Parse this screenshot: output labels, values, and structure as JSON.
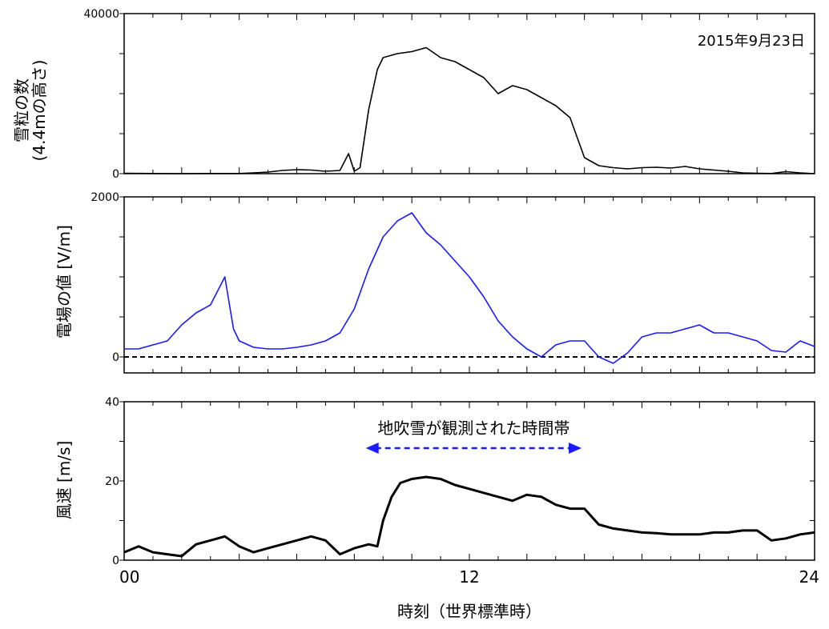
{
  "xlabel": "時刻（世界標準時）",
  "x_ticks": [
    "00",
    "12",
    "24"
  ],
  "chart_data": [
    {
      "type": "line",
      "panel": "top",
      "ylabel_line1": "雪粒の数",
      "ylabel_line2": "(4.4mの高さ)",
      "annotation": "2015年9月23日",
      "xlim": [
        0,
        24
      ],
      "ylim": [
        0,
        40000
      ],
      "y_ticks": [
        "40000",
        "0"
      ],
      "series": [
        {
          "color": "#000000",
          "x": [
            0,
            1,
            2,
            3,
            4,
            4.5,
            5,
            5.5,
            6,
            6.5,
            7,
            7.5,
            7.8,
            8,
            8.2,
            8.5,
            8.8,
            9,
            9.5,
            10,
            10.5,
            11,
            11.5,
            12,
            12.5,
            13,
            13.5,
            14,
            14.5,
            15,
            15.5,
            16,
            16.5,
            17,
            17.5,
            18,
            18.5,
            19,
            19.5,
            20,
            20.5,
            21,
            21.5,
            22,
            22.5,
            23,
            23.5,
            24
          ],
          "y": [
            100,
            50,
            0,
            50,
            50,
            200,
            400,
            800,
            1000,
            900,
            600,
            800,
            5000,
            600,
            1500,
            16000,
            26000,
            29000,
            30000,
            30500,
            31500,
            29000,
            28000,
            26000,
            24000,
            20000,
            22000,
            21000,
            19000,
            17000,
            14000,
            4000,
            2000,
            1500,
            1200,
            1500,
            1600,
            1400,
            1800,
            1200,
            900,
            600,
            200,
            100,
            50,
            500,
            200,
            0
          ]
        }
      ]
    },
    {
      "type": "line",
      "panel": "middle",
      "ylabel": "電場の値 [V/m]",
      "xlim": [
        0,
        24
      ],
      "ylim": [
        -200,
        2000
      ],
      "y_ticks": [
        "2000",
        "0"
      ],
      "reference_line": {
        "y": 0,
        "style": "dashed"
      },
      "series": [
        {
          "color": "#1a1aff",
          "x": [
            0,
            0.5,
            1,
            1.5,
            2,
            2.5,
            3,
            3.5,
            3.8,
            4,
            4.5,
            5,
            5.5,
            6,
            6.5,
            7,
            7.5,
            8,
            8.5,
            9,
            9.5,
            10,
            10.5,
            11,
            11.5,
            12,
            12.5,
            13,
            13.5,
            14,
            14.5,
            15,
            15.5,
            16,
            16.5,
            17,
            17.5,
            18,
            18.5,
            19,
            19.5,
            20,
            20.5,
            21,
            21.5,
            22,
            22.5,
            23,
            23.5,
            24
          ],
          "y": [
            100,
            100,
            150,
            200,
            400,
            550,
            650,
            1000,
            350,
            200,
            120,
            100,
            100,
            120,
            150,
            200,
            300,
            600,
            1100,
            1500,
            1700,
            1800,
            1550,
            1400,
            1200,
            1000,
            750,
            450,
            250,
            100,
            0,
            150,
            200,
            200,
            0,
            -80,
            50,
            250,
            300,
            300,
            350,
            400,
            300,
            300,
            250,
            200,
            80,
            60,
            200,
            130
          ]
        }
      ]
    },
    {
      "type": "line",
      "panel": "bottom",
      "ylabel": "風速 [m/s]",
      "xlim": [
        0,
        24
      ],
      "ylim": [
        0,
        40
      ],
      "y_ticks": [
        "40",
        "20",
        "0"
      ],
      "annotation": "地吹雪が観測された時間帯",
      "annotation_range": [
        8.4,
        15.9
      ],
      "series": [
        {
          "color": "#000000",
          "x": [
            0,
            0.5,
            1,
            1.5,
            2,
            2.5,
            3,
            3.5,
            4,
            4.5,
            5,
            5.5,
            6,
            6.5,
            7,
            7.5,
            8,
            8.5,
            8.8,
            9,
            9.3,
            9.6,
            10,
            10.5,
            11,
            11.5,
            12,
            12.5,
            13,
            13.5,
            14,
            14.5,
            15,
            15.5,
            16,
            16.5,
            17,
            17.5,
            18,
            18.5,
            19,
            19.5,
            20,
            20.5,
            21,
            21.5,
            22,
            22.5,
            23,
            23.5,
            24
          ],
          "y": [
            2,
            3.5,
            2,
            1.5,
            1,
            4,
            5,
            6,
            3.5,
            2,
            3,
            4,
            5,
            6,
            5,
            1.5,
            3,
            4,
            3.5,
            10,
            16,
            19.5,
            20.5,
            21,
            20.5,
            19,
            18,
            17,
            16,
            15,
            16.5,
            16,
            14,
            13,
            13,
            9,
            8,
            7.5,
            7,
            6.8,
            6.5,
            6.5,
            6.5,
            7,
            7,
            7.5,
            7.5,
            5,
            5.5,
            6.5,
            7
          ]
        }
      ]
    }
  ]
}
